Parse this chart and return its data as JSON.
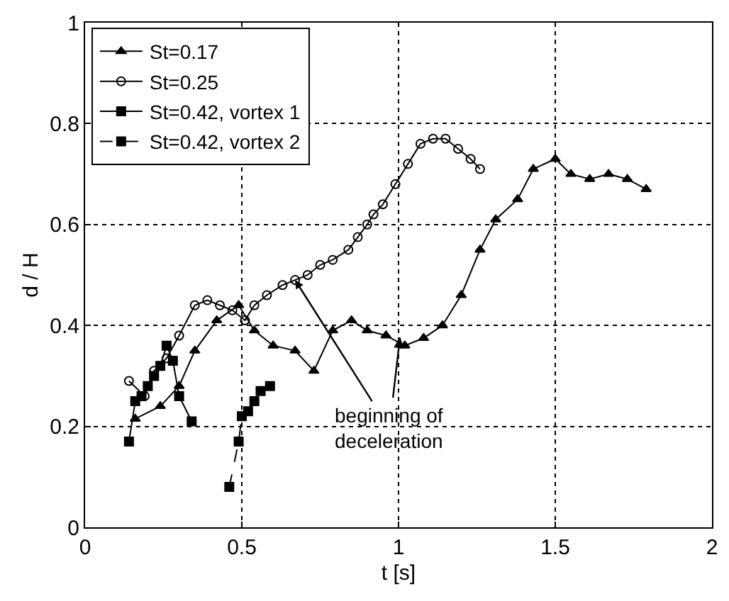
{
  "chart_data": {
    "type": "line",
    "xlabel": "t [s]",
    "ylabel": "d / H",
    "xlim": [
      0,
      2
    ],
    "xticks": [
      0,
      0.5,
      1,
      1.5,
      2
    ],
    "ylim": [
      0,
      1
    ],
    "yticks": [
      0,
      0.2,
      0.4,
      0.6,
      0.8,
      1
    ],
    "grid": true,
    "legend": "top left",
    "series": [
      {
        "name": "St=0.17",
        "color": "#000000",
        "marker": "triangle",
        "line_style": "solid",
        "x": [
          0.16,
          0.24,
          0.3,
          0.35,
          0.42,
          0.49,
          0.54,
          0.6,
          0.67,
          0.73,
          0.79,
          0.85,
          0.9,
          0.96,
          1.02,
          1.08,
          1.14,
          1.2,
          1.26,
          1.31,
          1.38,
          1.43,
          1.5,
          1.55,
          1.61,
          1.67,
          1.73,
          1.79
        ],
        "values": [
          0.215,
          0.24,
          0.28,
          0.35,
          0.41,
          0.44,
          0.39,
          0.36,
          0.35,
          0.31,
          0.39,
          0.41,
          0.39,
          0.38,
          0.36,
          0.375,
          0.4,
          0.46,
          0.55,
          0.61,
          0.65,
          0.71,
          0.73,
          0.7,
          0.69,
          0.7,
          0.69,
          0.67
        ]
      },
      {
        "name": "St=0.25",
        "color": "#000000",
        "marker": "circle",
        "line_style": "solid",
        "x": [
          0.14,
          0.19,
          0.22,
          0.26,
          0.3,
          0.35,
          0.39,
          0.43,
          0.47,
          0.51,
          0.54,
          0.58,
          0.63,
          0.67,
          0.71,
          0.75,
          0.79,
          0.84,
          0.87,
          0.9,
          0.92,
          0.95,
          0.99,
          1.03,
          1.07,
          1.11,
          1.15,
          1.19,
          1.23,
          1.26
        ],
        "values": [
          0.29,
          0.26,
          0.31,
          0.335,
          0.38,
          0.44,
          0.45,
          0.44,
          0.43,
          0.41,
          0.44,
          0.46,
          0.48,
          0.49,
          0.5,
          0.52,
          0.53,
          0.55,
          0.575,
          0.6,
          0.62,
          0.64,
          0.68,
          0.72,
          0.76,
          0.77,
          0.77,
          0.75,
          0.73,
          0.71
        ]
      },
      {
        "name": "St=0.42, vortex 1",
        "color": "#000000",
        "marker": "square",
        "line_style": "solid",
        "x": [
          0.14,
          0.16,
          0.18,
          0.2,
          0.22,
          0.24,
          0.26,
          0.28,
          0.3,
          0.34
        ],
        "values": [
          0.17,
          0.25,
          0.26,
          0.28,
          0.3,
          0.32,
          0.36,
          0.33,
          0.26,
          0.21
        ]
      },
      {
        "name": "St=0.42, vortex 2",
        "color": "#000000",
        "marker": "square",
        "line_style": "dashed",
        "x": [
          0.46,
          0.49,
          0.5,
          0.52,
          0.54,
          0.56,
          0.59
        ],
        "values": [
          0.08,
          0.17,
          0.22,
          0.23,
          0.25,
          0.27,
          0.28
        ]
      }
    ],
    "annotations": [
      {
        "text": "beginning of\ndeceleration",
        "x": 0.67,
        "y": 0.49
      }
    ]
  }
}
